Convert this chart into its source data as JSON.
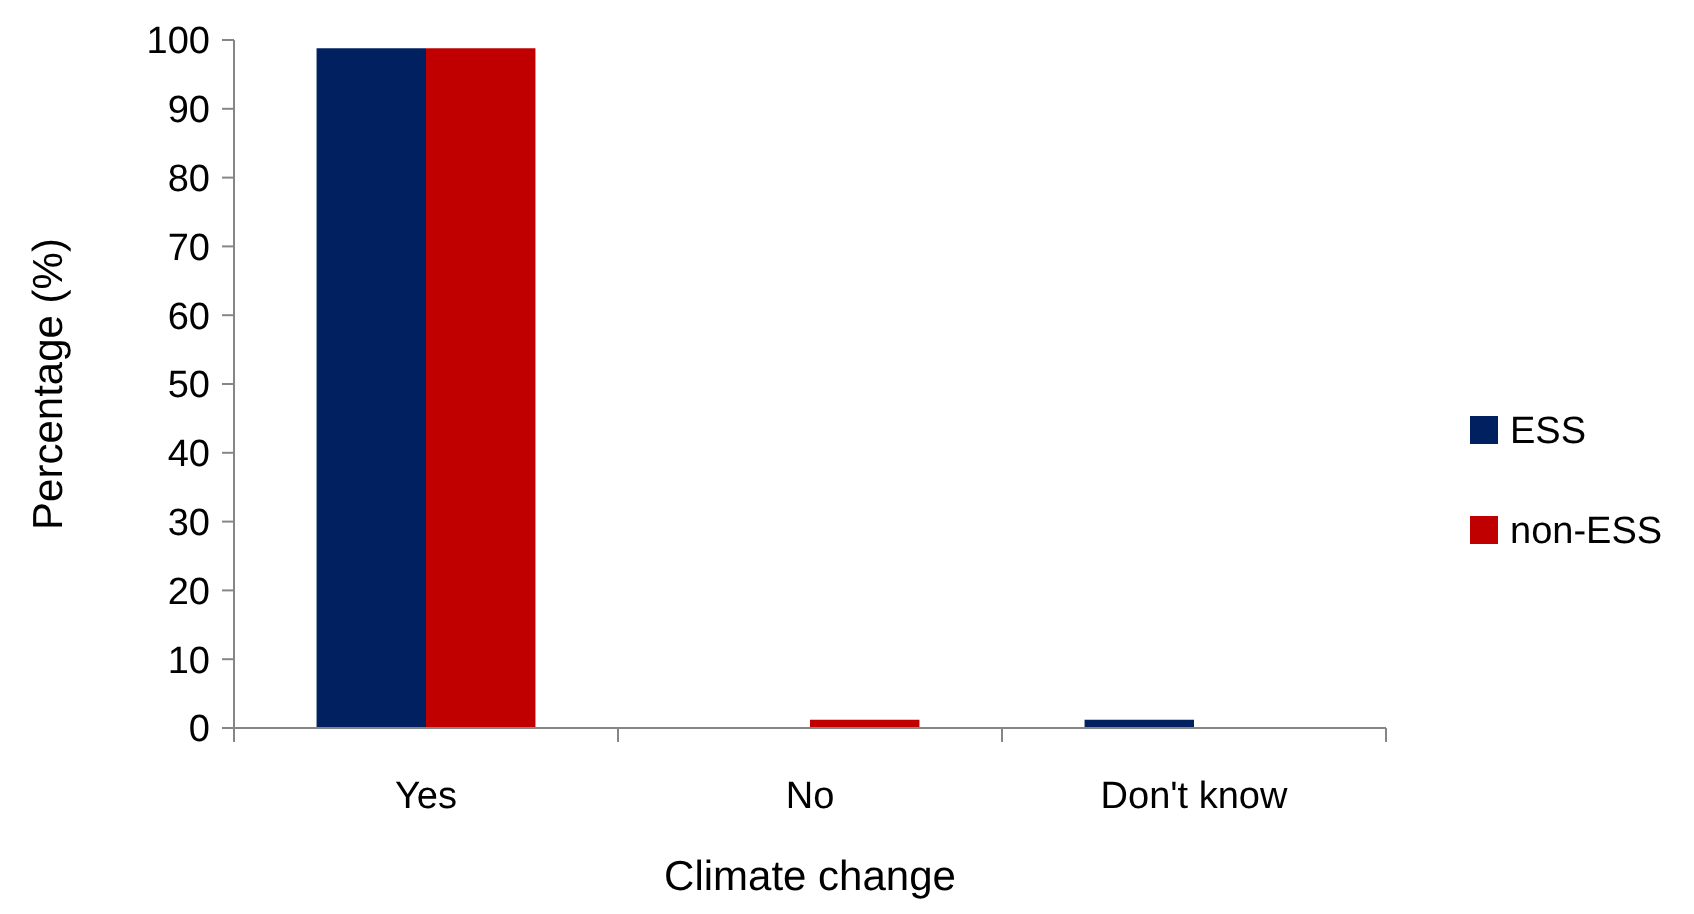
{
  "chart_data": {
    "type": "bar",
    "xlabel": "Climate change",
    "ylabel": "Percentage (%)",
    "categories": [
      "Yes",
      "No",
      "Don't know"
    ],
    "series": [
      {
        "name": "ESS",
        "color": "#002060",
        "values": [
          98.8,
          0,
          1.2
        ]
      },
      {
        "name": "non-ESS",
        "color": "#c00000",
        "values": [
          98.8,
          1.2,
          0
        ]
      }
    ],
    "ylim": [
      0,
      100
    ],
    "yticks": [
      0,
      10,
      20,
      30,
      40,
      50,
      60,
      70,
      80,
      90,
      100
    ],
    "grid": false,
    "legend": "right"
  }
}
